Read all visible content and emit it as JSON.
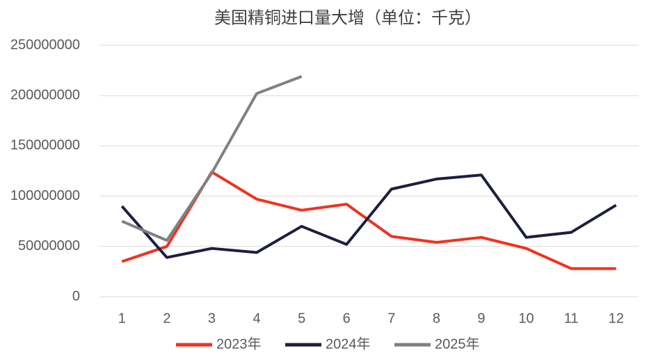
{
  "chart_data": {
    "type": "line",
    "title": "美国精铜进口量大增（单位：千克）",
    "categories": [
      "1",
      "2",
      "3",
      "4",
      "5",
      "6",
      "7",
      "8",
      "9",
      "10",
      "11",
      "12"
    ],
    "series": [
      {
        "name": "2023年",
        "color": "#f0321e",
        "values": [
          35000000,
          50000000,
          124000000,
          97000000,
          86000000,
          92000000,
          60000000,
          54000000,
          59000000,
          48000000,
          28000000,
          28000000
        ]
      },
      {
        "name": "2024年",
        "color": "#1c1f3f",
        "values": [
          90000000,
          39000000,
          48000000,
          44000000,
          70000000,
          52000000,
          107000000,
          117000000,
          121000000,
          59000000,
          64000000,
          91000000
        ]
      },
      {
        "name": "2025年",
        "color": "#808080",
        "values": [
          75000000,
          56000000,
          123000000,
          202000000,
          219000000,
          null,
          null,
          null,
          null,
          null,
          null,
          null
        ]
      }
    ],
    "ylim": [
      0,
      250000000
    ],
    "yticks": [
      0,
      50000000,
      100000000,
      150000000,
      200000000,
      250000000
    ],
    "grid": true,
    "legend": "bottom"
  }
}
